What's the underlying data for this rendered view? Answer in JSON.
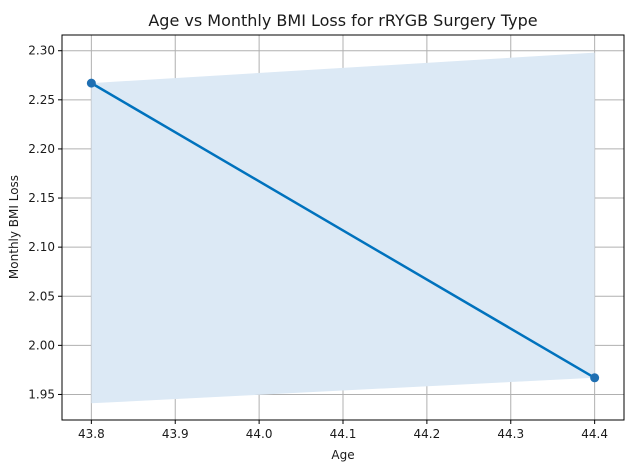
{
  "chart_data": {
    "type": "line",
    "title": "Age vs Monthly BMI Loss for rRYGB Surgery Type",
    "xlabel": "Age",
    "ylabel": "Monthly BMI Loss",
    "xlim": [
      43.765,
      44.435
    ],
    "ylim": [
      1.924,
      2.316
    ],
    "x_ticks": [
      "43.8",
      "43.9",
      "44.0",
      "44.1",
      "44.2",
      "44.3",
      "44.4"
    ],
    "y_ticks": [
      "1.95",
      "2.00",
      "2.05",
      "2.10",
      "2.15",
      "2.20",
      "2.25",
      "2.30"
    ],
    "grid": true,
    "points": [
      {
        "x": 43.8,
        "y": 2.267
      },
      {
        "x": 44.4,
        "y": 1.967
      }
    ],
    "regression_line": [
      {
        "x": 43.8,
        "y": 2.267
      },
      {
        "x": 44.4,
        "y": 1.967
      }
    ],
    "confidence_band": {
      "x": [
        43.8,
        44.4
      ],
      "lower": [
        1.941,
        1.967
      ],
      "upper": [
        2.267,
        2.298
      ]
    },
    "colors": {
      "line": "#0072bd",
      "points": "#1f6fb2",
      "band": "#dce9f5",
      "grid": "#b0b0b0",
      "axis": "#000000"
    }
  }
}
